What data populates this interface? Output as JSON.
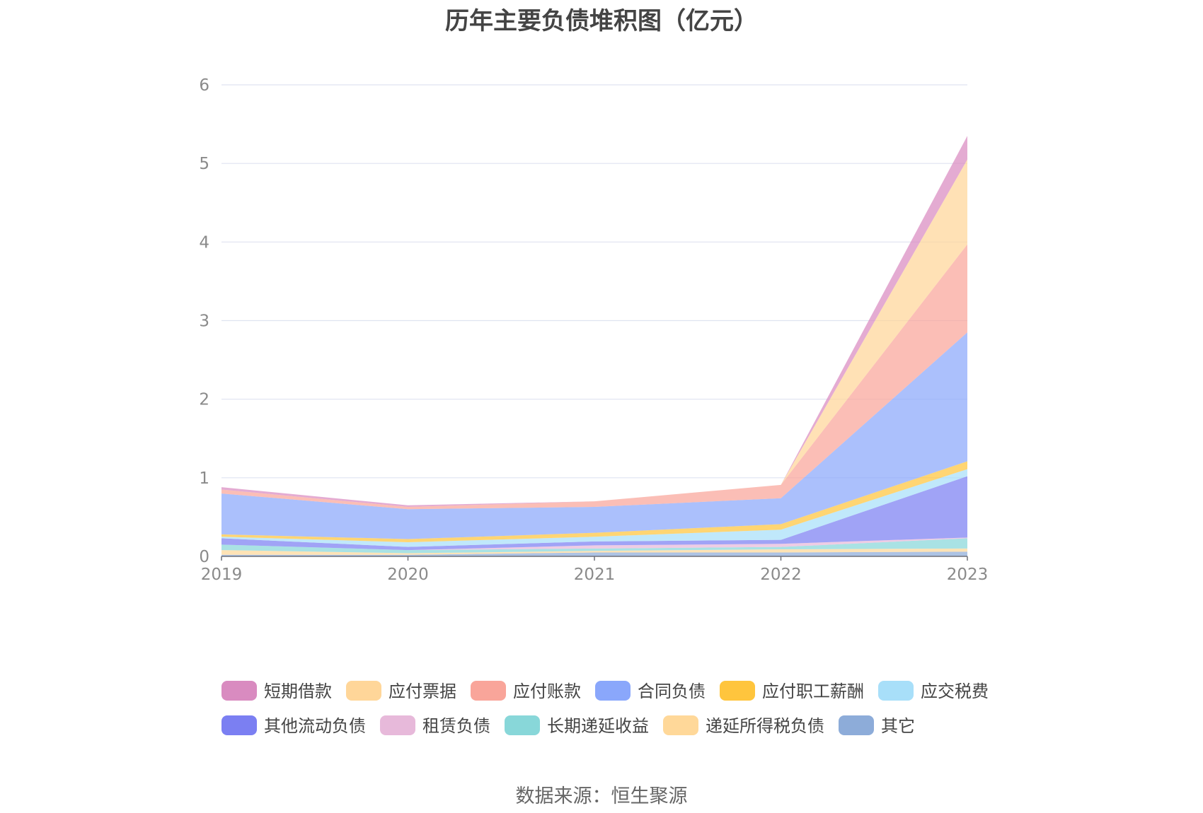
{
  "chart_data": {
    "type": "area",
    "stacked": true,
    "title": "历年主要负债堆积图（亿元）",
    "xlabel": "",
    "ylabel": "",
    "x": [
      "2019",
      "2020",
      "2021",
      "2022",
      "2023"
    ],
    "ylim": [
      0,
      6
    ],
    "yticks": [
      0,
      1,
      2,
      3,
      4,
      5,
      6
    ],
    "grid": true,
    "legend_position": "bottom",
    "series": [
      {
        "name": "其它",
        "color": "#8dacd9",
        "values": [
          0.02,
          0.02,
          0.05,
          0.05,
          0.06
        ]
      },
      {
        "name": "递延所得税负债",
        "color": "#ffd899",
        "values": [
          0.06,
          0.02,
          0.02,
          0.04,
          0.04
        ]
      },
      {
        "name": "长期递延收益",
        "color": "#88d7d9",
        "values": [
          0.07,
          0.04,
          0.03,
          0.03,
          0.13
        ]
      },
      {
        "name": "租赁负债",
        "color": "#e7b9da",
        "values": [
          0.0,
          0.0,
          0.04,
          0.04,
          0.01
        ]
      },
      {
        "name": "其他流动负债",
        "color": "#7b7ff2",
        "values": [
          0.08,
          0.04,
          0.05,
          0.05,
          0.78
        ]
      },
      {
        "name": "应交税费",
        "color": "#a8dff9",
        "values": [
          0.02,
          0.06,
          0.06,
          0.13,
          0.09
        ]
      },
      {
        "name": "应付职工薪酬",
        "color": "#ffc53d",
        "values": [
          0.03,
          0.04,
          0.05,
          0.07,
          0.1
        ]
      },
      {
        "name": "合同负债",
        "color": "#8aa7fb",
        "values": [
          0.52,
          0.38,
          0.33,
          0.33,
          1.64
        ]
      },
      {
        "name": "应付账款",
        "color": "#f9a59a",
        "values": [
          0.05,
          0.03,
          0.07,
          0.17,
          1.12
        ]
      },
      {
        "name": "应付票据",
        "color": "#ffd699",
        "values": [
          0.0,
          0.0,
          0.0,
          0.0,
          1.08
        ]
      },
      {
        "name": "短期借款",
        "color": "#d98bc0",
        "values": [
          0.03,
          0.02,
          0.0,
          0.0,
          0.3
        ]
      }
    ],
    "legend_order": [
      "短期借款",
      "应付票据",
      "应付账款",
      "合同负债",
      "应付职工薪酬",
      "应交税费",
      "其他流动负债",
      "租赁负债",
      "长期递延收益",
      "递延所得税负债",
      "其它"
    ]
  },
  "source_note": "数据来源：恒生聚源"
}
